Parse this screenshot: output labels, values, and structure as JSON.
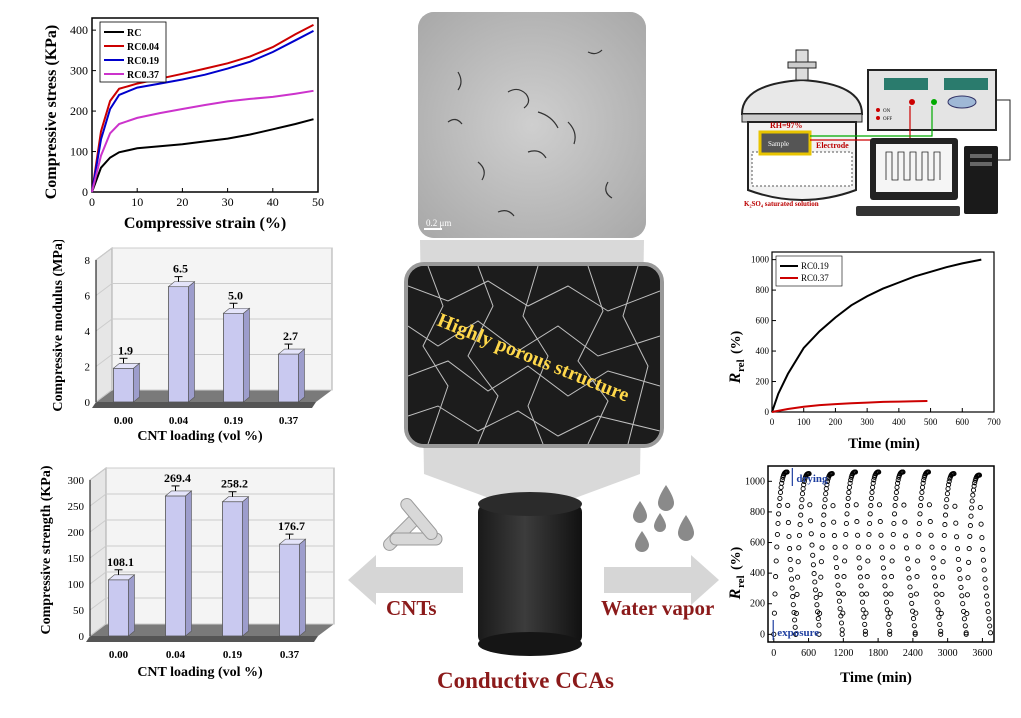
{
  "chart_data": [
    {
      "type": "line",
      "xlabel": "Compressive strain (%)",
      "ylabel": "Compressive stress (KPa)",
      "xlim": [
        0,
        50
      ],
      "ylim": [
        0,
        430
      ],
      "xticks": [
        "0",
        "10",
        "20",
        "30",
        "40",
        "50"
      ],
      "yticks": [
        "0",
        "100",
        "200",
        "300",
        "400"
      ],
      "legend": "top-left",
      "series": [
        {
          "name": "RC",
          "color": "#000000",
          "x": [
            0,
            2,
            4,
            6,
            10,
            15,
            20,
            25,
            30,
            35,
            40,
            45,
            49
          ],
          "y": [
            0,
            60,
            85,
            98,
            108,
            113,
            118,
            125,
            132,
            142,
            155,
            168,
            180
          ]
        },
        {
          "name": "RC0.04",
          "color": "#cc0000",
          "x": [
            0,
            2,
            4,
            6,
            10,
            15,
            20,
            25,
            30,
            35,
            40,
            45,
            49
          ],
          "y": [
            0,
            150,
            225,
            255,
            268,
            280,
            292,
            305,
            318,
            335,
            358,
            390,
            413
          ]
        },
        {
          "name": "RC0.19",
          "color": "#0000cc",
          "x": [
            0,
            2,
            4,
            6,
            10,
            15,
            20,
            25,
            30,
            35,
            40,
            45,
            49
          ],
          "y": [
            0,
            130,
            205,
            240,
            258,
            268,
            278,
            290,
            305,
            322,
            346,
            375,
            398
          ]
        },
        {
          "name": "RC0.37",
          "color": "#cc33cc",
          "x": [
            0,
            2,
            4,
            6,
            10,
            15,
            20,
            25,
            30,
            35,
            40,
            45,
            49
          ],
          "y": [
            0,
            90,
            145,
            168,
            183,
            195,
            205,
            215,
            224,
            230,
            235,
            243,
            250
          ]
        }
      ]
    },
    {
      "type": "bar",
      "xlabel": "CNT loading (vol %)",
      "ylabel": "Compressive modulus (MPa)",
      "categories": [
        "0.00",
        "0.04",
        "0.19",
        "0.37"
      ],
      "values": [
        1.9,
        6.5,
        5.0,
        2.7
      ],
      "labels": [
        "1.9",
        "6.5",
        "5.0",
        "2.7"
      ],
      "yticks": [
        "0",
        "2",
        "4",
        "6",
        "8"
      ],
      "ylim": [
        0,
        8
      ]
    },
    {
      "type": "bar",
      "xlabel": "CNT loading (vol %)",
      "ylabel": "Compressive strength (KPa)",
      "categories": [
        "0.00",
        "0.04",
        "0.19",
        "0.37"
      ],
      "values": [
        108.1,
        269.4,
        258.2,
        176.7
      ],
      "labels": [
        "108.1",
        "269.4",
        "258.2",
        "176.7"
      ],
      "yticks": [
        "0",
        "50",
        "100",
        "150",
        "200",
        "250",
        "300"
      ],
      "ylim": [
        0,
        300
      ]
    },
    {
      "type": "line",
      "xlabel": "Time (min)",
      "ylabel_main": "R",
      "ylabel_sub": "rel",
      "ylabel_unit": "(%)",
      "xlim": [
        0,
        700
      ],
      "ylim": [
        0,
        1050
      ],
      "xticks": [
        "0",
        "100",
        "200",
        "300",
        "400",
        "500",
        "600",
        "700"
      ],
      "yticks": [
        "0",
        "200",
        "400",
        "600",
        "800",
        "1000"
      ],
      "legend": "top-left",
      "series": [
        {
          "name": "RC0.19",
          "color": "#000000",
          "x": [
            0,
            20,
            50,
            100,
            150,
            200,
            250,
            300,
            350,
            400,
            450,
            500,
            550,
            600,
            660
          ],
          "y": [
            0,
            120,
            250,
            420,
            530,
            620,
            700,
            760,
            810,
            850,
            890,
            920,
            950,
            975,
            1000
          ]
        },
        {
          "name": "RC0.37",
          "color": "#cc0000",
          "x": [
            0,
            50,
            100,
            150,
            200,
            250,
            300,
            350,
            400,
            450,
            490
          ],
          "y": [
            0,
            20,
            35,
            45,
            52,
            58,
            62,
            66,
            68,
            70,
            72
          ]
        }
      ]
    },
    {
      "type": "line",
      "xlabel": "Time (min)",
      "ylabel_main": "R",
      "ylabel_sub": "rel",
      "ylabel_unit": "(%)",
      "xlim": [
        -100,
        3800
      ],
      "ylim": [
        -50,
        1100
      ],
      "xticks": [
        "0",
        "600",
        "1200",
        "1800",
        "2400",
        "3000",
        "3600"
      ],
      "yticks": [
        "0",
        "200",
        "400",
        "600",
        "800",
        "1000"
      ],
      "annotations": [
        "drying",
        "exposure"
      ],
      "series": [
        {
          "name": "cycles",
          "color": "#000000",
          "cycles": [
            {
              "start": 0,
              "peak": 1060,
              "end": 0
            },
            {
              "start": 380,
              "peak": 1050,
              "end": 60
            },
            {
              "start": 780,
              "peak": 1050,
              "end": 30
            },
            {
              "start": 1180,
              "peak": 1060,
              "end": 20
            },
            {
              "start": 1580,
              "peak": 1060,
              "end": 20
            },
            {
              "start": 2000,
              "peak": 1060,
              "end": 10
            },
            {
              "start": 2440,
              "peak": 1060,
              "end": 20
            },
            {
              "start": 2880,
              "peak": 1050,
              "end": 10
            },
            {
              "start": 3320,
              "peak": 1040,
              "end": 10
            }
          ]
        }
      ]
    }
  ],
  "center": {
    "scale_bar": "0.2 μm",
    "sem_label": "Highly porous structure",
    "title": "Conductive CCAs",
    "cnts_label": "CNTs",
    "water_label": "Water vapor"
  },
  "schematic": {
    "rh_label": "RH=97%",
    "sample_label": "Sample",
    "electrode_label": "Electrode",
    "solution_label": "K₂SO₄ saturated solution",
    "on_label": "ON",
    "off_label": "OFF"
  }
}
